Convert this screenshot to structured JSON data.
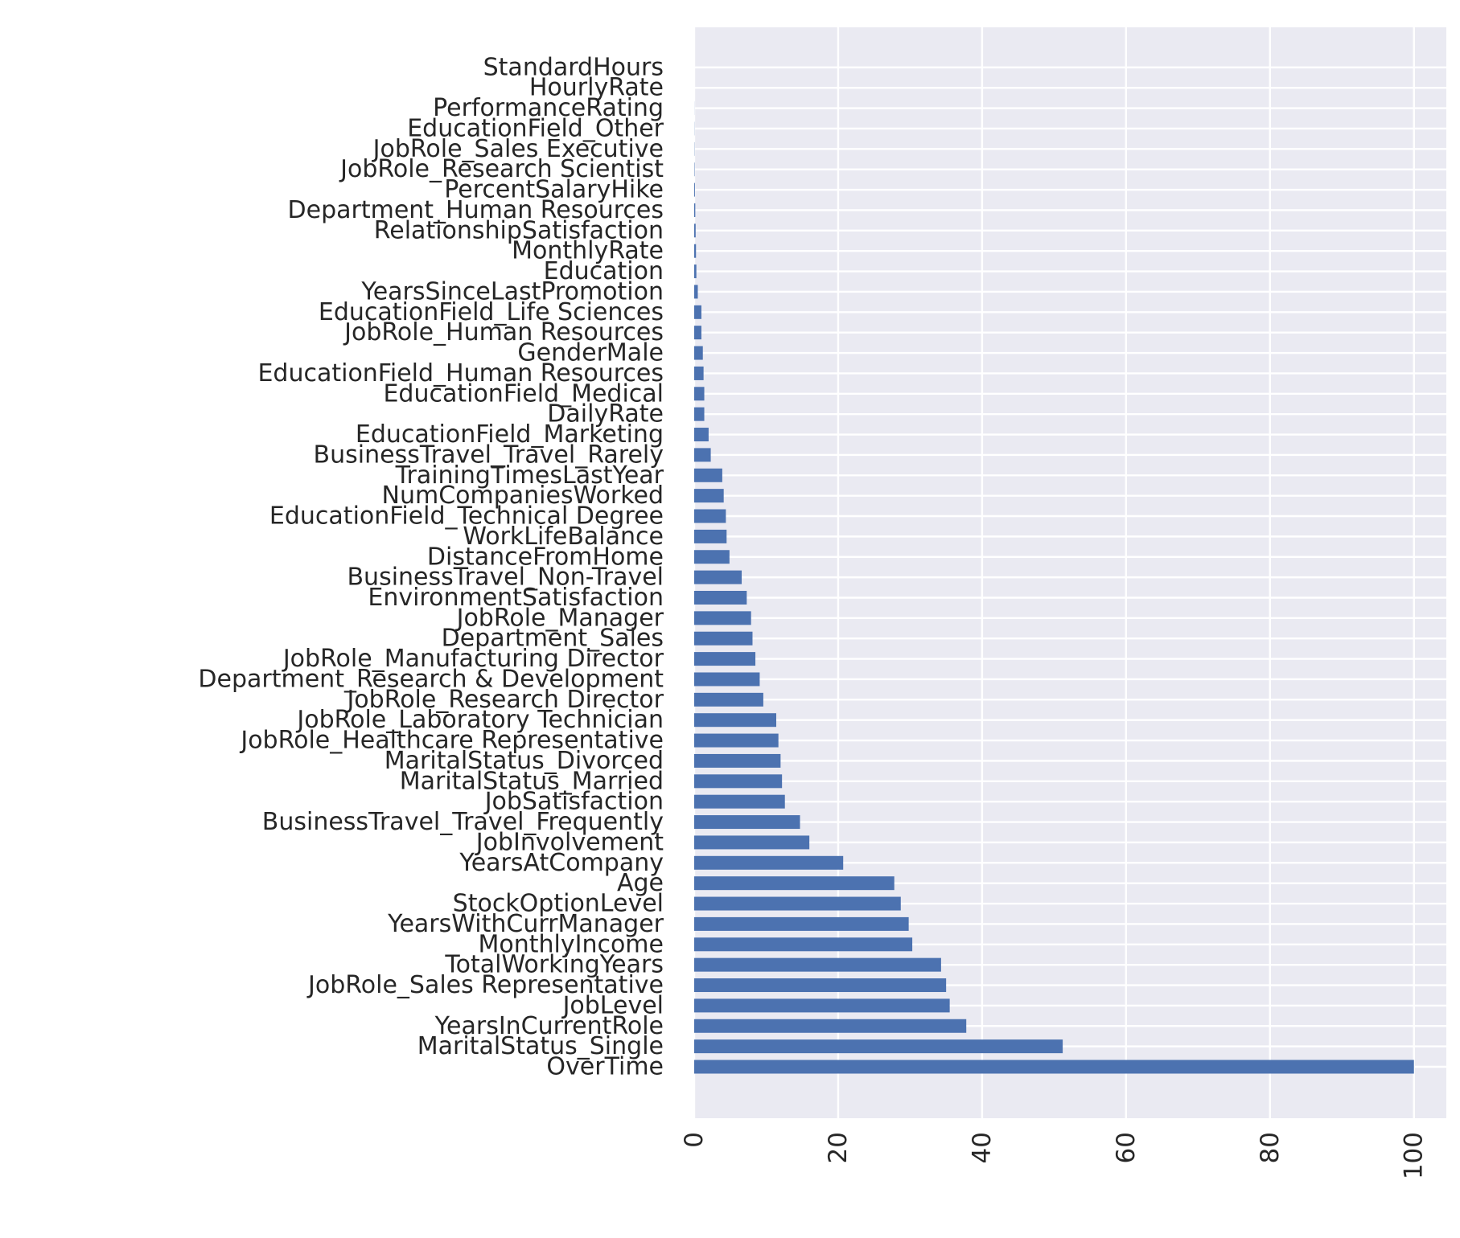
{
  "chart_data": {
    "type": "bar",
    "orientation": "horizontal",
    "title": "",
    "xlabel": "",
    "ylabel": "",
    "xlim": [
      0,
      104.5
    ],
    "xticks": [
      "0",
      "20",
      "40",
      "60",
      "80",
      "100"
    ],
    "grid": true,
    "legend": "none",
    "colors": {
      "bar": "#4c72b0",
      "plot_bg": "#eaeaf2",
      "grid": "#ffffff",
      "text": "#262626"
    },
    "categories": [
      "OverTime",
      "MaritalStatus_Single",
      "YearsInCurrentRole",
      "JobLevel",
      "JobRole_Sales Representative",
      "TotalWorkingYears",
      "MonthlyIncome",
      "YearsWithCurrManager",
      "StockOptionLevel",
      "Age",
      "YearsAtCompany",
      "JobInvolvement",
      "BusinessTravel_Travel_Frequently",
      "JobSatisfaction",
      "MaritalStatus_Married",
      "MaritalStatus_Divorced",
      "JobRole_Healthcare Representative",
      "JobRole_Laboratory Technician",
      "JobRole_Research Director",
      "Department_Research & Development",
      "JobRole_Manufacturing Director",
      "Department_Sales",
      "JobRole_Manager",
      "EnvironmentSatisfaction",
      "BusinessTravel_Non-Travel",
      "DistanceFromHome",
      "WorkLifeBalance",
      "EducationField_Technical Degree",
      "NumCompaniesWorked",
      "TrainingTimesLastYear",
      "BusinessTravel_Travel_Rarely",
      "EducationField_Marketing",
      "DailyRate",
      "EducationField_Medical",
      "EducationField_Human Resources",
      "GenderMale",
      "JobRole_Human Resources",
      "EducationField_Life Sciences",
      "YearsSinceLastPromotion",
      "Education",
      "MonthlyRate",
      "RelationshipSatisfaction",
      "Department_Human Resources",
      "PercentSalaryHike",
      "JobRole_Research Scientist",
      "JobRole_Sales Executive",
      "EducationField_Other",
      "PerformanceRating",
      "HourlyRate",
      "StandardHours"
    ],
    "values": [
      100,
      51.2,
      37.8,
      35.5,
      35.0,
      34.3,
      30.3,
      29.8,
      28.7,
      27.8,
      20.7,
      16.0,
      14.7,
      12.6,
      12.2,
      12.0,
      11.7,
      11.4,
      9.6,
      9.1,
      8.5,
      8.1,
      7.9,
      7.3,
      6.6,
      4.9,
      4.5,
      4.4,
      4.1,
      3.9,
      2.3,
      2.0,
      1.4,
      1.4,
      1.3,
      1.2,
      1.0,
      1.0,
      0.5,
      0.3,
      0.25,
      0.2,
      0.15,
      0.1,
      0.05,
      0.03,
      0.02,
      0.01,
      0.0,
      0.0
    ]
  }
}
